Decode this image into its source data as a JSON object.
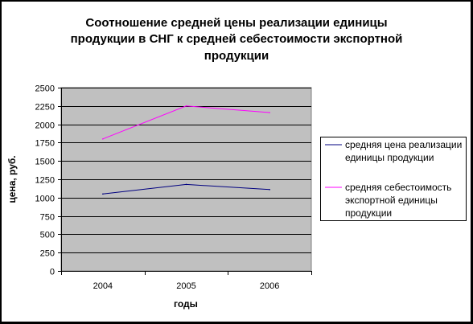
{
  "chart_data": {
    "type": "line",
    "title_lines": [
      "Соотношение средней цены реализации единицы",
      "продукции в СНГ к средней себестоимости экспортной",
      "продукции"
    ],
    "xlabel": "годы",
    "ylabel": "цена, руб.",
    "categories": [
      "2004",
      "2005",
      "2006"
    ],
    "ylim": [
      0,
      2500
    ],
    "yticks": [
      0,
      250,
      500,
      750,
      1000,
      1250,
      1500,
      1750,
      2000,
      2250,
      2500
    ],
    "grid": true,
    "legend_position": "right",
    "plot_background": "#c0c0c0",
    "series": [
      {
        "name_lines": [
          "средняя цена реализации",
          "единицы продукции"
        ],
        "color": "#000080",
        "values": [
          1050,
          1180,
          1110
        ]
      },
      {
        "name_lines": [
          "средняя себестоимость",
          "экспортной единицы",
          "продукции"
        ],
        "color": "#ff00ff",
        "values": [
          1800,
          2250,
          2160
        ]
      }
    ]
  }
}
